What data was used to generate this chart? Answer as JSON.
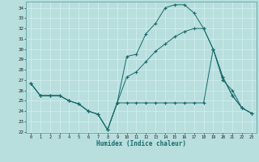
{
  "xlabel": "Humidex (Indice chaleur)",
  "bg_color": "#b8dede",
  "grid_color": "#d0eeee",
  "line_color": "#1a6b6b",
  "ylim": [
    21.9,
    34.6
  ],
  "xlim": [
    -0.5,
    23.5
  ],
  "yticks": [
    22,
    23,
    24,
    25,
    26,
    27,
    28,
    29,
    30,
    31,
    32,
    33,
    34
  ],
  "xticks": [
    0,
    1,
    2,
    3,
    4,
    5,
    6,
    7,
    8,
    9,
    10,
    11,
    12,
    13,
    14,
    15,
    16,
    17,
    18,
    19,
    20,
    21,
    22,
    23
  ],
  "line1_y": [
    26.7,
    25.5,
    25.5,
    25.5,
    25.0,
    24.7,
    24.0,
    23.7,
    22.2,
    24.8,
    29.3,
    29.5,
    31.5,
    32.5,
    34.0,
    34.3,
    34.3,
    33.5,
    32.0,
    30.0,
    27.0,
    26.0,
    24.3,
    23.8
  ],
  "line2_y": [
    26.7,
    25.5,
    25.5,
    25.5,
    25.0,
    24.7,
    24.0,
    23.7,
    22.2,
    24.8,
    27.3,
    27.8,
    28.8,
    29.8,
    30.5,
    31.2,
    31.7,
    32.0,
    32.0,
    30.0,
    27.3,
    25.5,
    24.3,
    23.8
  ],
  "line3_y": [
    26.7,
    25.5,
    25.5,
    25.5,
    25.0,
    24.7,
    24.0,
    23.7,
    22.2,
    24.8,
    24.8,
    24.8,
    24.8,
    24.8,
    24.8,
    24.8,
    24.8,
    24.8,
    24.8,
    30.0,
    27.3,
    25.5,
    24.3,
    23.8
  ]
}
